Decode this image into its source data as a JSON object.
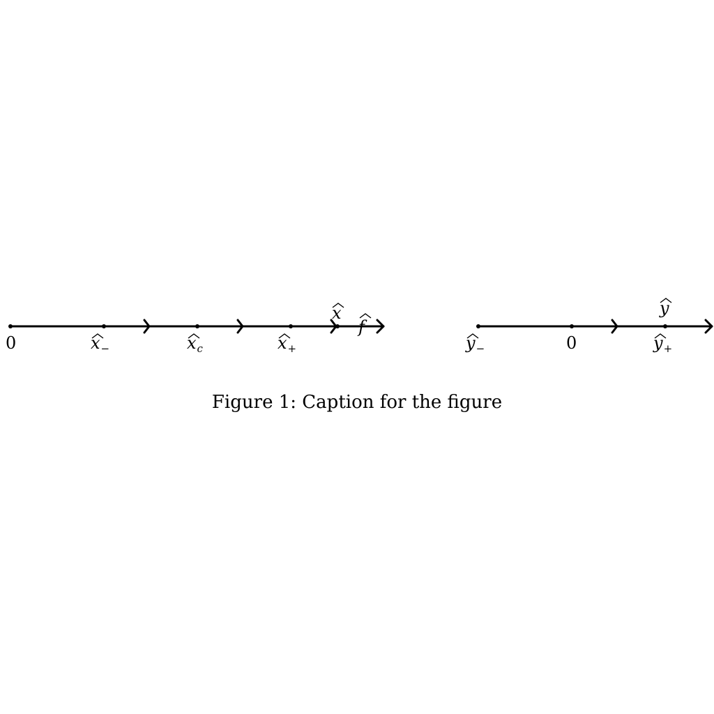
{
  "diagram": {
    "lines": [
      {
        "id": "x-line",
        "points": [
          {
            "id": "origin",
            "text": "0"
          },
          {
            "id": "x-minus",
            "base": "x",
            "sub": "−",
            "hat": true
          },
          {
            "id": "x-c",
            "base": "x",
            "sub": "c",
            "hat": true
          },
          {
            "id": "x-plus",
            "base": "x",
            "sub": "+",
            "hat": true
          },
          {
            "id": "x-hat",
            "base": "x",
            "sub": "",
            "hat": true
          }
        ],
        "end_label": {
          "base": "f",
          "hat": true
        }
      },
      {
        "id": "y-line",
        "points": [
          {
            "id": "y-minus",
            "base": "y",
            "sub": "−",
            "hat": true
          },
          {
            "id": "origin",
            "text": "0"
          },
          {
            "id": "y-hat",
            "base": "y",
            "sub": "",
            "hat": true
          },
          {
            "id": "y-plus",
            "base": "y",
            "sub": "+",
            "hat": true
          }
        ]
      }
    ],
    "caption": "Figure 1: Caption for the figure"
  }
}
